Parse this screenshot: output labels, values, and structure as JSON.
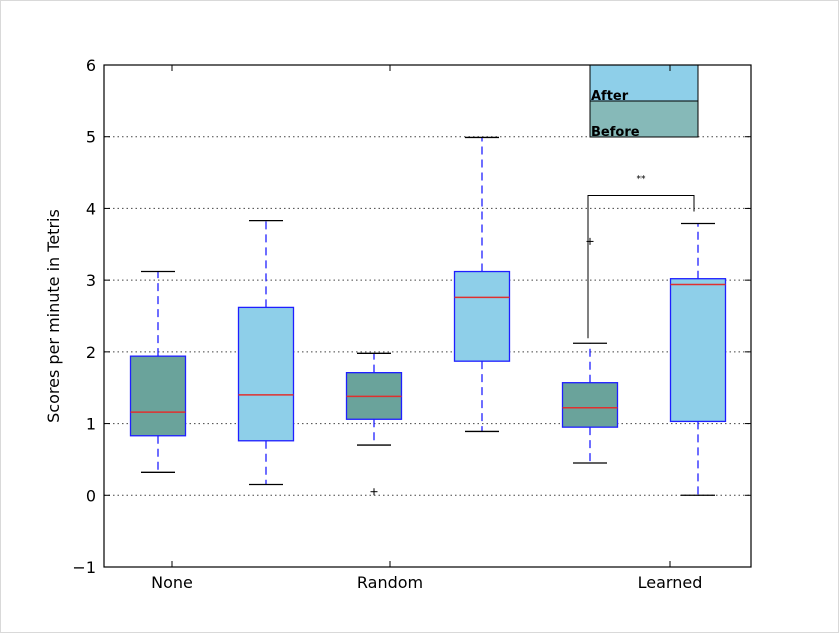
{
  "chart_data": {
    "type": "box",
    "ylabel": "Scores per minute in Tetris",
    "xlabel": "",
    "ylim": [
      -1,
      6
    ],
    "yticks": [
      -1,
      0,
      1,
      2,
      3,
      4,
      5,
      6
    ],
    "ytick_labels": [
      "−1",
      "0",
      "1",
      "2",
      "3",
      "4",
      "5",
      "6"
    ],
    "grid": "horizontal-dotted",
    "categories": [
      "None",
      "Random",
      "Learned"
    ],
    "series": [
      {
        "name": "Before",
        "color": "#6aa39b"
      },
      {
        "name": "After",
        "color": "#8ecfe9"
      }
    ],
    "boxes": [
      {
        "group": "None",
        "series": "Before",
        "min": 0.32,
        "q1": 0.83,
        "median": 1.16,
        "q3": 1.94,
        "max": 3.12,
        "outliers": []
      },
      {
        "group": "None",
        "series": "After",
        "min": 0.15,
        "q1": 0.76,
        "median": 1.4,
        "q3": 2.62,
        "max": 3.83,
        "outliers": []
      },
      {
        "group": "Random",
        "series": "Before",
        "min": 0.7,
        "q1": 1.06,
        "median": 1.38,
        "q3": 1.71,
        "max": 1.98,
        "outliers": [
          0.05
        ]
      },
      {
        "group": "Random",
        "series": "After",
        "min": 0.89,
        "q1": 1.87,
        "median": 2.76,
        "q3": 3.12,
        "max": 4.99,
        "outliers": []
      },
      {
        "group": "Learned",
        "series": "Before",
        "min": 0.45,
        "q1": 0.95,
        "median": 1.22,
        "q3": 1.57,
        "max": 2.12,
        "outliers": [
          3.54
        ]
      },
      {
        "group": "Learned",
        "series": "After",
        "min": 0.0,
        "q1": 1.03,
        "median": 2.94,
        "q3": 3.02,
        "max": 3.79,
        "outliers": []
      }
    ],
    "legend": {
      "location": "top-right",
      "entries": [
        "After",
        "Before"
      ]
    },
    "significance": {
      "label": "**",
      "between": [
        "Learned Before",
        "Learned After"
      ],
      "y": 4.18
    },
    "colors": {
      "box_edge": "#1f1fff",
      "median": "#e0302f",
      "whisker": "#1f1fff",
      "cap": "#000000",
      "grid": "#444444"
    }
  }
}
